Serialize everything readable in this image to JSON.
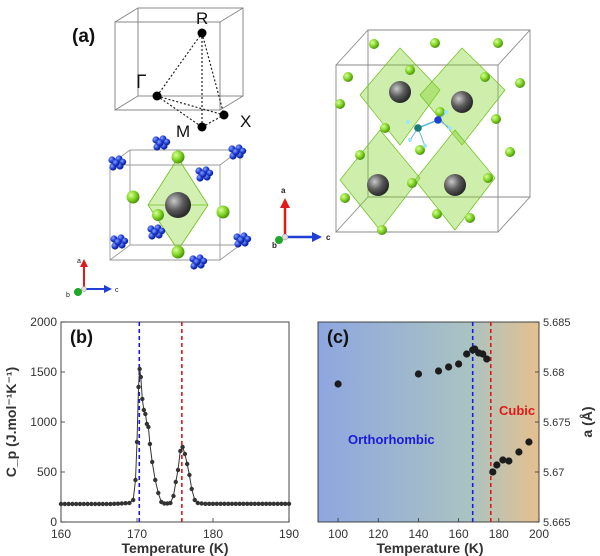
{
  "panel_a": {
    "label": "(a)",
    "k_points": {
      "R": "R",
      "Gamma": "Γ",
      "M": "M",
      "X": "X"
    },
    "axes_small": {
      "a": "a",
      "b": "b",
      "c": "c"
    },
    "axes_large": {
      "a": "a",
      "b": "b",
      "c": "c"
    },
    "colors": {
      "green": "#7ed321",
      "blue": "#1f3fd6",
      "gray": "#555555"
    }
  },
  "chart_data": [
    {
      "type": "line",
      "panel_label": "(b)",
      "title": "",
      "xlabel": "Temperature (K)",
      "ylabel": "C_p (J.mol⁻¹K⁻¹)",
      "xlim": [
        160,
        190
      ],
      "ylim": [
        0,
        2000
      ],
      "xticks": [
        160,
        170,
        180,
        190
      ],
      "yticks": [
        0,
        500,
        1000,
        1500,
        2000
      ],
      "vlines": [
        {
          "x": 170.3,
          "color": "#1a1ad8"
        },
        {
          "x": 175.9,
          "color": "#d81a1a"
        }
      ],
      "series": [
        {
          "name": "Cp",
          "x": [
            160.0,
            160.5,
            161.0,
            161.5,
            162.0,
            162.5,
            163.0,
            163.5,
            164.0,
            164.5,
            165.0,
            165.5,
            166.0,
            166.5,
            167.0,
            167.5,
            168.0,
            168.5,
            169.0,
            169.5,
            169.8,
            170.0,
            170.2,
            170.35,
            170.5,
            170.7,
            170.9,
            171.1,
            171.3,
            171.5,
            171.7,
            172.0,
            172.4,
            172.8,
            173.2,
            173.6,
            174.0,
            174.4,
            174.8,
            175.1,
            175.4,
            175.7,
            176.0,
            176.3,
            176.6,
            176.9,
            177.2,
            177.6,
            178.0,
            178.5,
            179.0,
            179.5,
            180.0,
            180.5,
            181.0,
            181.5,
            182.0,
            182.5,
            183.0,
            183.5,
            184.0,
            184.5,
            185.0,
            185.5,
            186.0,
            186.5,
            187.0,
            187.5,
            188.0,
            188.5,
            189.0,
            189.5,
            190.0
          ],
          "y": [
            180,
            180,
            180,
            180,
            180,
            180,
            180,
            180,
            180,
            180,
            180,
            180,
            180,
            180,
            182,
            183,
            185,
            188,
            190,
            220,
            420,
            800,
            1350,
            1530,
            1450,
            1230,
            1120,
            1080,
            980,
            950,
            780,
            600,
            420,
            290,
            200,
            185,
            185,
            190,
            260,
            400,
            520,
            710,
            750,
            680,
            580,
            470,
            330,
            220,
            190,
            185,
            182,
            182,
            182,
            182,
            182,
            182,
            182,
            182,
            182,
            182,
            182,
            182,
            182,
            182,
            182,
            182,
            182,
            182,
            182,
            182,
            182,
            182,
            182
          ]
        }
      ]
    },
    {
      "type": "scatter",
      "panel_label": "(c)",
      "title": "",
      "xlabel": "Temperature (K)",
      "ylabel": "a (Å)",
      "xlim": [
        90,
        200
      ],
      "ylim": [
        5.665,
        5.685
      ],
      "xticks": [
        100,
        120,
        140,
        160,
        180,
        200
      ],
      "yticks": [
        5.665,
        5.67,
        5.675,
        5.68,
        5.685
      ],
      "ytick_labels": [
        "5.665",
        "5.67",
        "5.675",
        "5.68",
        "5.685"
      ],
      "vlines": [
        {
          "x": 167.0,
          "color": "#1a1ad8"
        },
        {
          "x": 176.0,
          "color": "#d81a1a"
        }
      ],
      "annotations": [
        {
          "text": "Orthorhombic",
          "color": "#1a1ad8"
        },
        {
          "text": "Cubic",
          "color": "#e01a1a"
        }
      ],
      "background_gradient": [
        "#8ea6e0",
        "#a9c3c2",
        "#e6c08e"
      ],
      "series": [
        {
          "name": "a",
          "x": [
            100,
            140,
            150,
            155,
            160,
            164,
            167,
            168,
            170,
            172,
            174,
            177,
            179,
            182,
            185,
            190,
            195
          ],
          "y": [
            5.6788,
            5.6798,
            5.6801,
            5.6805,
            5.6808,
            5.6818,
            5.6822,
            5.6823,
            5.6819,
            5.6818,
            5.6813,
            5.67,
            5.6707,
            5.6712,
            5.6711,
            5.672,
            5.673
          ]
        }
      ]
    }
  ]
}
